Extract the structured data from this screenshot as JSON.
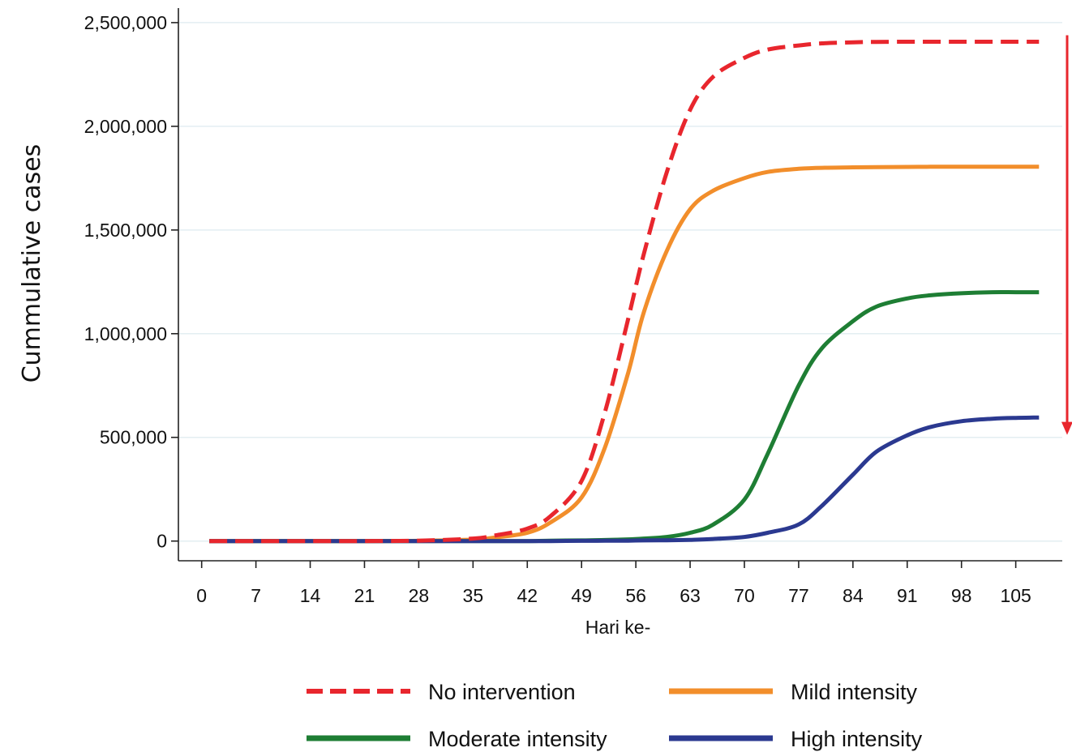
{
  "chart_data": {
    "type": "line",
    "title": "",
    "xlabel": "Hari ke-",
    "ylabel": "Cummulative cases",
    "xlim": [
      -3,
      111
    ],
    "ylim": [
      -95000,
      2570000
    ],
    "xticks": [
      0,
      7,
      14,
      21,
      28,
      35,
      42,
      49,
      56,
      63,
      70,
      77,
      84,
      91,
      98,
      105
    ],
    "yticks": [
      0,
      500000,
      1000000,
      1500000,
      2000000,
      2500000
    ],
    "ytick_labels": [
      "0",
      "500,000",
      "1,000,000",
      "1,500,000",
      "2,000,000",
      "2,500,000"
    ],
    "grid": true,
    "legend_position": "bottom",
    "x": [
      1,
      7,
      14,
      21,
      28,
      35,
      38,
      42,
      45,
      49,
      52,
      55,
      57,
      60,
      63,
      66,
      70,
      73,
      77,
      80,
      84,
      87,
      91,
      94,
      98,
      102,
      105,
      108
    ],
    "series": [
      {
        "name": "No intervention",
        "color": "#e8262d",
        "dash": true,
        "values": [
          0,
          0,
          0,
          0,
          2000,
          12000,
          28000,
          60000,
          120000,
          290000,
          620000,
          1070000,
          1380000,
          1780000,
          2080000,
          2240000,
          2330000,
          2370000,
          2390000,
          2400000,
          2405000,
          2407000,
          2408000,
          2408000,
          2408000,
          2408000,
          2408000,
          2408000
        ]
      },
      {
        "name": "Mild intensity",
        "color": "#f28e2b",
        "dash": false,
        "values": [
          0,
          0,
          0,
          0,
          1000,
          7000,
          18000,
          40000,
          90000,
          210000,
          450000,
          810000,
          1100000,
          1400000,
          1600000,
          1690000,
          1750000,
          1780000,
          1795000,
          1800000,
          1802000,
          1803000,
          1804000,
          1805000,
          1805000,
          1805000,
          1805000,
          1805000
        ]
      },
      {
        "name": "Moderate intensity",
        "color": "#1e7e34",
        "dash": false,
        "values": [
          0,
          0,
          0,
          0,
          0,
          0,
          0,
          0,
          2000,
          3000,
          5000,
          8000,
          12000,
          20000,
          40000,
          80000,
          200000,
          420000,
          750000,
          930000,
          1060000,
          1130000,
          1170000,
          1185000,
          1195000,
          1200000,
          1200000,
          1200000
        ]
      },
      {
        "name": "High intensity",
        "color": "#2b3990",
        "dash": false,
        "values": [
          0,
          0,
          0,
          0,
          0,
          0,
          0,
          0,
          0,
          1000,
          1500,
          2000,
          3000,
          4000,
          6000,
          10000,
          20000,
          40000,
          80000,
          170000,
          320000,
          430000,
          510000,
          550000,
          578000,
          590000,
          594000,
          596000
        ]
      }
    ],
    "annotations": [
      {
        "type": "arrow",
        "direction": "down",
        "color": "#e8262d",
        "from_y": 2408000,
        "to_y": 520000
      }
    ]
  }
}
